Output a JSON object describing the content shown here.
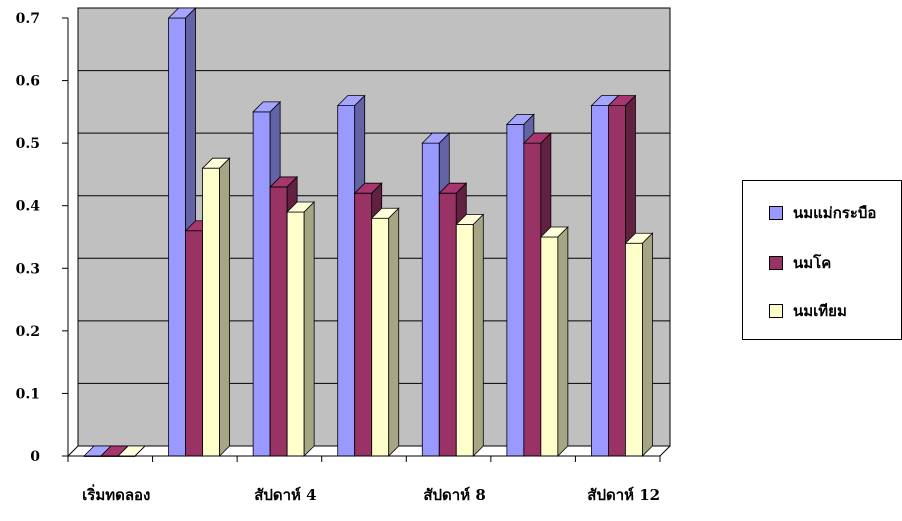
{
  "chart_data": {
    "type": "bar",
    "categories": [
      "เริ่มทดลอง",
      "",
      "สัปดาห์ 4",
      "",
      "สัปดาห์ 8",
      "",
      "สัปดาห์ 12"
    ],
    "series": [
      {
        "name": "นมแม่กระบือ",
        "color": "#9999ff",
        "values": [
          0,
          0.7,
          0.55,
          0.56,
          0.5,
          0.53,
          0.56
        ]
      },
      {
        "name": "นมโค",
        "color": "#993366",
        "values": [
          0,
          0.36,
          0.43,
          0.42,
          0.42,
          0.5,
          0.56
        ]
      },
      {
        "name": "นมเทียม",
        "color": "#ffffcc",
        "values": [
          0,
          0.46,
          0.39,
          0.38,
          0.37,
          0.35,
          0.34
        ]
      }
    ],
    "yticks": [
      "0",
      "0.1",
      "0.2",
      "0.3",
      "0.4",
      "0.5",
      "0.6",
      "0.7"
    ],
    "ylim": [
      0,
      0.7
    ],
    "grid": true,
    "legend_position": "right",
    "plot_background": "#c0c0c0"
  }
}
